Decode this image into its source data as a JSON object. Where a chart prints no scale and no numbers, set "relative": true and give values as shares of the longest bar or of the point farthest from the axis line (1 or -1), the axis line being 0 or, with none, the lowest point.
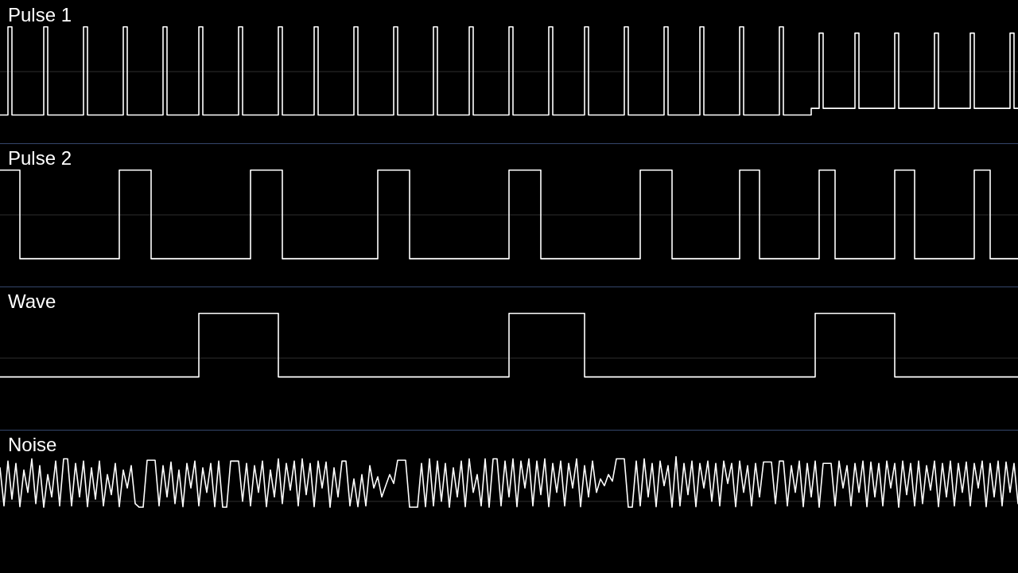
{
  "chart_data": [
    {
      "type": "step",
      "title": "Pulse 1",
      "relative": true,
      "categories": [
        null,
        null,
        null,
        null,
        null,
        null,
        null,
        null,
        null,
        null,
        null,
        null,
        null,
        null,
        null,
        null,
        null,
        null,
        null,
        null,
        null,
        null,
        null,
        null,
        null,
        null,
        null,
        null,
        null,
        null,
        null,
        null,
        null,
        null,
        null,
        null,
        null,
        null,
        null,
        null,
        null,
        null,
        null,
        null,
        null,
        null,
        null,
        null,
        null,
        null,
        null,
        null,
        null,
        null,
        null,
        null,
        null,
        null,
        null,
        null,
        null,
        null,
        null,
        null,
        null,
        null,
        null,
        null,
        null,
        null,
        null,
        null,
        null,
        null,
        null,
        null,
        null,
        null,
        null,
        null,
        null,
        null,
        null,
        null,
        null,
        null,
        null,
        null,
        null,
        null,
        null,
        null,
        null,
        null,
        null,
        null,
        null,
        null,
        null,
        null,
        null,
        null,
        null,
        null,
        null,
        null,
        null,
        null,
        null,
        null,
        null,
        null,
        null,
        null,
        null,
        null,
        null,
        null,
        null,
        null,
        null,
        null,
        null,
        null,
        null,
        null,
        null,
        null,
        null,
        null,
        null,
        null,
        null,
        null,
        null,
        null,
        null,
        null,
        null,
        null,
        null,
        null,
        null,
        null,
        null,
        null,
        null,
        null,
        null,
        null,
        null,
        null,
        null,
        null,
        null,
        null,
        null,
        null,
        null,
        null,
        null,
        null,
        null,
        null,
        null,
        null,
        null,
        null,
        null,
        null,
        null,
        null,
        null,
        null,
        null,
        null,
        null,
        null,
        null,
        null,
        null,
        null,
        null,
        null,
        null,
        null,
        null,
        null,
        null,
        null,
        null,
        null,
        null,
        null,
        null,
        null,
        null,
        null,
        null,
        null,
        null,
        null,
        null,
        null,
        null,
        null,
        null,
        null,
        null,
        null,
        null,
        null,
        null,
        null,
        null,
        null,
        null,
        null,
        null,
        null,
        null,
        null,
        null,
        null,
        null,
        null,
        null,
        null,
        null,
        null,
        null,
        null,
        null,
        null,
        null,
        null,
        null,
        null,
        null,
        null,
        null,
        null,
        null,
        null,
        null,
        null,
        null,
        null,
        null,
        null,
        null,
        null,
        null,
        null,
        null,
        null,
        null
      ],
      "series": [
        {
          "color": "#ffffff",
          "values": [
            -0.97,
            -0.97,
            1,
            -0.97,
            -0.97,
            -0.97,
            -0.97,
            -0.97,
            -0.97,
            -0.97,
            -0.97,
            1,
            -0.97,
            -0.97,
            -0.97,
            -0.97,
            -0.97,
            -0.97,
            -0.97,
            -0.97,
            -0.97,
            1,
            -0.97,
            -0.97,
            -0.97,
            -0.97,
            -0.97,
            -0.97,
            -0.97,
            -0.97,
            -0.97,
            1,
            -0.97,
            -0.97,
            -0.97,
            -0.97,
            -0.97,
            -0.97,
            -0.97,
            -0.97,
            -0.97,
            1,
            -0.97,
            -0.97,
            -0.97,
            -0.97,
            -0.97,
            -0.97,
            -0.97,
            -0.97,
            1,
            -0.97,
            -0.97,
            -0.97,
            -0.97,
            -0.97,
            -0.97,
            -0.97,
            -0.97,
            -0.97,
            1,
            -0.97,
            -0.97,
            -0.97,
            -0.97,
            -0.97,
            -0.97,
            -0.97,
            -0.97,
            -0.97,
            1,
            -0.97,
            -0.97,
            -0.97,
            -0.97,
            -0.97,
            -0.97,
            -0.97,
            -0.97,
            1,
            -0.97,
            -0.97,
            -0.97,
            -0.97,
            -0.97,
            -0.97,
            -0.97,
            -0.97,
            -0.97,
            1,
            -0.97,
            -0.97,
            -0.97,
            -0.97,
            -0.97,
            -0.97,
            -0.97,
            -0.97,
            -0.97,
            1,
            -0.97,
            -0.97,
            -0.97,
            -0.97,
            -0.97,
            -0.97,
            -0.97,
            -0.97,
            -0.97,
            1,
            -0.97,
            -0.97,
            -0.97,
            -0.97,
            -0.97,
            -0.97,
            -0.97,
            -0.97,
            1,
            -0.97,
            -0.97,
            -0.97,
            -0.97,
            -0.97,
            -0.97,
            -0.97,
            -0.97,
            -0.97,
            1,
            -0.97,
            -0.97,
            -0.97,
            -0.97,
            -0.97,
            -0.97,
            -0.97,
            -0.97,
            -0.97,
            1,
            -0.97,
            -0.97,
            -0.97,
            -0.97,
            -0.97,
            -0.97,
            -0.97,
            -0.97,
            1,
            -0.97,
            -0.97,
            -0.97,
            -0.97,
            -0.97,
            -0.97,
            -0.97,
            -0.97,
            -0.97,
            1,
            -0.97,
            -0.97,
            -0.97,
            -0.97,
            -0.97,
            -0.97,
            -0.97,
            -0.97,
            -0.97,
            1,
            -0.97,
            -0.97,
            -0.97,
            -0.97,
            -0.97,
            -0.97,
            -0.97,
            -0.97,
            1,
            -0.97,
            -0.97,
            -0.97,
            -0.97,
            -0.97,
            -0.97,
            -0.97,
            -0.97,
            -0.97,
            1,
            -0.97,
            -0.97,
            -0.97,
            -0.97,
            -0.97,
            -0.97,
            -0.97,
            -0.97,
            -0.97,
            1,
            -0.97,
            -0.97,
            -0.97,
            -0.97,
            -0.97,
            -0.97,
            -0.97,
            -0.82,
            -0.82,
            0.86,
            -0.82,
            -0.82,
            -0.82,
            -0.82,
            -0.82,
            -0.82,
            -0.82,
            -0.82,
            0.86,
            -0.82,
            -0.82,
            -0.82,
            -0.82,
            -0.82,
            -0.82,
            -0.82,
            -0.82,
            -0.82,
            0.86,
            -0.82,
            -0.82,
            -0.82,
            -0.82,
            -0.82,
            -0.82,
            -0.82,
            -0.82,
            -0.82,
            0.86,
            -0.82,
            -0.82,
            -0.82,
            -0.82,
            -0.82,
            -0.82,
            -0.82,
            -0.82,
            0.86,
            -0.82,
            -0.82,
            -0.82,
            -0.82,
            -0.82,
            -0.82,
            -0.82,
            -0.82,
            -0.82,
            0.86,
            -0.82,
            -0.82
          ]
        }
      ]
    },
    {
      "type": "step",
      "title": "Pulse 2",
      "relative": true,
      "categories": [
        null,
        null,
        null,
        null,
        null,
        null,
        null,
        null,
        null,
        null,
        null,
        null,
        null,
        null,
        null,
        null,
        null,
        null,
        null,
        null,
        null,
        null,
        null,
        null,
        null,
        null,
        null,
        null,
        null,
        null,
        null,
        null,
        null,
        null,
        null,
        null,
        null,
        null,
        null,
        null,
        null,
        null,
        null,
        null,
        null,
        null,
        null,
        null,
        null,
        null,
        null,
        null,
        null,
        null,
        null,
        null,
        null,
        null,
        null,
        null,
        null,
        null,
        null,
        null,
        null,
        null,
        null,
        null,
        null,
        null,
        null,
        null,
        null,
        null,
        null,
        null,
        null,
        null,
        null,
        null,
        null,
        null,
        null,
        null,
        null,
        null,
        null,
        null,
        null,
        null,
        null,
        null,
        null,
        null,
        null,
        null,
        null,
        null,
        null,
        null,
        null,
        null,
        null,
        null,
        null,
        null,
        null,
        null,
        null,
        null,
        null,
        null,
        null,
        null,
        null,
        null,
        null,
        null,
        null,
        null,
        null,
        null,
        null,
        null,
        null,
        null,
        null,
        null,
        null,
        null,
        null,
        null,
        null,
        null,
        null,
        null,
        null,
        null,
        null,
        null,
        null,
        null,
        null,
        null,
        null,
        null,
        null,
        null,
        null,
        null,
        null,
        null,
        null,
        null,
        null,
        null,
        null,
        null,
        null,
        null,
        null,
        null,
        null,
        null,
        null,
        null,
        null,
        null,
        null,
        null,
        null,
        null,
        null,
        null,
        null,
        null,
        null,
        null,
        null,
        null,
        null,
        null,
        null,
        null,
        null,
        null,
        null,
        null,
        null,
        null,
        null,
        null,
        null,
        null,
        null,
        null,
        null,
        null,
        null,
        null,
        null,
        null,
        null,
        null,
        null,
        null,
        null,
        null,
        null,
        null,
        null,
        null,
        null,
        null,
        null,
        null,
        null,
        null,
        null,
        null,
        null,
        null,
        null,
        null,
        null,
        null,
        null,
        null,
        null,
        null,
        null,
        null,
        null,
        null,
        null,
        null,
        null,
        null,
        null,
        null,
        null,
        null,
        null,
        null,
        null,
        null,
        null,
        null,
        null,
        null,
        null,
        null,
        null,
        null,
        null,
        null,
        null
      ],
      "series": [
        {
          "color": "#ffffff",
          "values": [
            1,
            1,
            1,
            1,
            1,
            -0.98,
            -0.98,
            -0.98,
            -0.98,
            -0.98,
            -0.98,
            -0.98,
            -0.98,
            -0.98,
            -0.98,
            -0.98,
            -0.98,
            -0.98,
            -0.98,
            -0.98,
            -0.98,
            -0.98,
            -0.98,
            -0.98,
            -0.98,
            -0.98,
            -0.98,
            -0.98,
            -0.98,
            -0.98,
            1,
            1,
            1,
            1,
            1,
            1,
            1,
            1,
            -0.98,
            -0.98,
            -0.98,
            -0.98,
            -0.98,
            -0.98,
            -0.98,
            -0.98,
            -0.98,
            -0.98,
            -0.98,
            -0.98,
            -0.98,
            -0.98,
            -0.98,
            -0.98,
            -0.98,
            -0.98,
            -0.98,
            -0.98,
            -0.98,
            -0.98,
            -0.98,
            -0.98,
            -0.98,
            1,
            1,
            1,
            1,
            1,
            1,
            1,
            1,
            -0.98,
            -0.98,
            -0.98,
            -0.98,
            -0.98,
            -0.98,
            -0.98,
            -0.98,
            -0.98,
            -0.98,
            -0.98,
            -0.98,
            -0.98,
            -0.98,
            -0.98,
            -0.98,
            -0.98,
            -0.98,
            -0.98,
            -0.98,
            -0.98,
            -0.98,
            -0.98,
            -0.98,
            1,
            1,
            1,
            1,
            1,
            1,
            1,
            1,
            -0.98,
            -0.98,
            -0.98,
            -0.98,
            -0.98,
            -0.98,
            -0.98,
            -0.98,
            -0.98,
            -0.98,
            -0.98,
            -0.98,
            -0.98,
            -0.98,
            -0.98,
            -0.98,
            -0.98,
            -0.98,
            -0.98,
            -0.98,
            -0.98,
            -0.98,
            -0.98,
            -0.98,
            -0.98,
            1,
            1,
            1,
            1,
            1,
            1,
            1,
            1,
            -0.98,
            -0.98,
            -0.98,
            -0.98,
            -0.98,
            -0.98,
            -0.98,
            -0.98,
            -0.98,
            -0.98,
            -0.98,
            -0.98,
            -0.98,
            -0.98,
            -0.98,
            -0.98,
            -0.98,
            -0.98,
            -0.98,
            -0.98,
            -0.98,
            -0.98,
            -0.98,
            -0.98,
            -0.98,
            1,
            1,
            1,
            1,
            1,
            1,
            1,
            1,
            -0.98,
            -0.98,
            -0.98,
            -0.98,
            -0.98,
            -0.98,
            -0.98,
            -0.98,
            -0.98,
            -0.98,
            -0.98,
            -0.98,
            -0.98,
            -0.98,
            -0.98,
            -0.98,
            -0.98,
            1,
            1,
            1,
            1,
            1,
            -0.98,
            -0.98,
            -0.98,
            -0.98,
            -0.98,
            -0.98,
            -0.98,
            -0.98,
            -0.98,
            -0.98,
            -0.98,
            -0.98,
            -0.98,
            -0.98,
            -0.98,
            1,
            1,
            1,
            1,
            -0.98,
            -0.98,
            -0.98,
            -0.98,
            -0.98,
            -0.98,
            -0.98,
            -0.98,
            -0.98,
            -0.98,
            -0.98,
            -0.98,
            -0.98,
            -0.98,
            -0.98,
            1,
            1,
            1,
            1,
            1,
            -0.98,
            -0.98,
            -0.98,
            -0.98,
            -0.98,
            -0.98,
            -0.98,
            -0.98,
            -0.98,
            -0.98,
            -0.98,
            -0.98,
            -0.98,
            -0.98,
            -0.98,
            1,
            1,
            1,
            1,
            -0.98,
            -0.98,
            -0.98,
            -0.98,
            -0.98,
            -0.98,
            -0.98,
            -0.98
          ]
        }
      ]
    },
    {
      "type": "step",
      "title": "Wave",
      "relative": true,
      "categories": [
        null,
        null,
        null,
        null,
        null,
        null,
        null,
        null,
        null,
        null,
        null,
        null,
        null,
        null,
        null,
        null,
        null,
        null,
        null,
        null,
        null,
        null,
        null,
        null,
        null,
        null,
        null,
        null,
        null,
        null,
        null,
        null,
        null,
        null,
        null,
        null,
        null,
        null,
        null,
        null,
        null,
        null,
        null,
        null,
        null,
        null,
        null,
        null,
        null,
        null,
        null,
        null,
        null,
        null,
        null,
        null,
        null,
        null,
        null,
        null,
        null,
        null,
        null,
        null,
        null,
        null,
        null,
        null,
        null,
        null,
        null,
        null,
        null,
        null,
        null,
        null,
        null,
        null,
        null,
        null,
        null,
        null,
        null,
        null,
        null,
        null,
        null,
        null,
        null,
        null,
        null,
        null,
        null,
        null,
        null,
        null,
        null,
        null,
        null,
        null,
        null,
        null,
        null,
        null,
        null,
        null,
        null,
        null,
        null,
        null,
        null,
        null,
        null,
        null,
        null,
        null,
        null,
        null,
        null,
        null,
        null,
        null,
        null,
        null,
        null,
        null,
        null,
        null,
        null,
        null,
        null,
        null,
        null,
        null,
        null,
        null,
        null,
        null,
        null,
        null,
        null,
        null,
        null,
        null,
        null,
        null,
        null,
        null,
        null,
        null,
        null,
        null,
        null,
        null,
        null,
        null,
        null,
        null,
        null,
        null,
        null,
        null,
        null,
        null,
        null,
        null,
        null,
        null,
        null,
        null,
        null,
        null,
        null,
        null,
        null,
        null,
        null,
        null,
        null,
        null,
        null,
        null,
        null,
        null,
        null,
        null,
        null,
        null,
        null,
        null,
        null,
        null,
        null,
        null,
        null,
        null,
        null,
        null,
        null,
        null,
        null,
        null,
        null,
        null,
        null,
        null,
        null,
        null,
        null,
        null,
        null,
        null,
        null,
        null,
        null,
        null,
        null,
        null,
        null,
        null,
        null,
        null,
        null,
        null,
        null,
        null,
        null,
        null,
        null,
        null,
        null,
        null,
        null,
        null,
        null,
        null,
        null,
        null,
        null,
        null,
        null,
        null,
        null,
        null,
        null,
        null,
        null,
        null,
        null,
        null,
        null,
        null,
        null,
        null,
        null,
        null,
        null
      ],
      "series": [
        {
          "color": "#ffffff",
          "values": [
            -0.42,
            -0.42,
            -0.42,
            -0.42,
            -0.42,
            -0.42,
            -0.42,
            -0.42,
            -0.42,
            -0.42,
            -0.42,
            -0.42,
            -0.42,
            -0.42,
            -0.42,
            -0.42,
            -0.42,
            -0.42,
            -0.42,
            -0.42,
            -0.42,
            -0.42,
            -0.42,
            -0.42,
            -0.42,
            -0.42,
            -0.42,
            -0.42,
            -0.42,
            -0.42,
            -0.42,
            -0.42,
            -0.42,
            -0.42,
            -0.42,
            -0.42,
            -0.42,
            -0.42,
            -0.42,
            -0.42,
            -0.42,
            -0.42,
            -0.42,
            -0.42,
            -0.42,
            -0.42,
            -0.42,
            -0.42,
            -0.42,
            -0.42,
            1,
            1,
            1,
            1,
            1,
            1,
            1,
            1,
            1,
            1,
            1,
            1,
            1,
            1,
            1,
            1,
            1,
            1,
            1,
            1,
            -0.42,
            -0.42,
            -0.42,
            -0.42,
            -0.42,
            -0.42,
            -0.42,
            -0.42,
            -0.42,
            -0.42,
            -0.42,
            -0.42,
            -0.42,
            -0.42,
            -0.42,
            -0.42,
            -0.42,
            -0.42,
            -0.42,
            -0.42,
            -0.42,
            -0.42,
            -0.42,
            -0.42,
            -0.42,
            -0.42,
            -0.42,
            -0.42,
            -0.42,
            -0.42,
            -0.42,
            -0.42,
            -0.42,
            -0.42,
            -0.42,
            -0.42,
            -0.42,
            -0.42,
            -0.42,
            -0.42,
            -0.42,
            -0.42,
            -0.42,
            -0.42,
            -0.42,
            -0.42,
            -0.42,
            -0.42,
            -0.42,
            -0.42,
            -0.42,
            -0.42,
            -0.42,
            -0.42,
            -0.42,
            -0.42,
            -0.42,
            -0.42,
            1,
            1,
            1,
            1,
            1,
            1,
            1,
            1,
            1,
            1,
            1,
            1,
            1,
            1,
            1,
            1,
            1,
            1,
            1,
            -0.42,
            -0.42,
            -0.42,
            -0.42,
            -0.42,
            -0.42,
            -0.42,
            -0.42,
            -0.42,
            -0.42,
            -0.42,
            -0.42,
            -0.42,
            -0.42,
            -0.42,
            -0.42,
            -0.42,
            -0.42,
            -0.42,
            -0.42,
            -0.42,
            -0.42,
            -0.42,
            -0.42,
            -0.42,
            -0.42,
            -0.42,
            -0.42,
            -0.42,
            -0.42,
            -0.42,
            -0.42,
            -0.42,
            -0.42,
            -0.42,
            -0.42,
            -0.42,
            -0.42,
            -0.42,
            -0.42,
            -0.42,
            -0.42,
            -0.42,
            -0.42,
            -0.42,
            -0.42,
            -0.42,
            -0.42,
            -0.42,
            -0.42,
            -0.42,
            -0.42,
            -0.42,
            -0.42,
            -0.42,
            -0.42,
            -0.42,
            -0.42,
            1,
            1,
            1,
            1,
            1,
            1,
            1,
            1,
            1,
            1,
            1,
            1,
            1,
            1,
            1,
            1,
            1,
            1,
            1,
            1,
            -0.42,
            -0.42,
            -0.42,
            -0.42,
            -0.42,
            -0.42,
            -0.42,
            -0.42,
            -0.42,
            -0.42,
            -0.42,
            -0.42,
            -0.42,
            -0.42,
            -0.42,
            -0.42,
            -0.42,
            -0.42,
            -0.42,
            -0.42,
            -0.42,
            -0.42,
            -0.42,
            -0.42,
            -0.42,
            -0.42,
            -0.42,
            -0.42,
            -0.42,
            -0.42,
            -0.42,
            -0.42
          ]
        }
      ]
    },
    {
      "type": "line",
      "title": "Noise",
      "relative": true,
      "categories": [
        null,
        null,
        null,
        null,
        null,
        null,
        null,
        null,
        null,
        null,
        null,
        null,
        null,
        null,
        null,
        null,
        null,
        null,
        null,
        null,
        null,
        null,
        null,
        null,
        null,
        null,
        null,
        null,
        null,
        null,
        null,
        null,
        null,
        null,
        null,
        null,
        null,
        null,
        null,
        null,
        null,
        null,
        null,
        null,
        null,
        null,
        null,
        null,
        null,
        null,
        null,
        null,
        null,
        null,
        null,
        null,
        null,
        null,
        null,
        null,
        null,
        null,
        null,
        null,
        null,
        null,
        null,
        null,
        null,
        null,
        null,
        null,
        null,
        null,
        null,
        null,
        null,
        null,
        null,
        null,
        null,
        null,
        null,
        null,
        null,
        null,
        null,
        null,
        null,
        null,
        null,
        null,
        null,
        null,
        null,
        null,
        null,
        null,
        null,
        null,
        null,
        null,
        null,
        null,
        null,
        null,
        null,
        null,
        null,
        null,
        null,
        null,
        null,
        null,
        null,
        null,
        null,
        null,
        null,
        null,
        null,
        null,
        null,
        null,
        null,
        null,
        null,
        null,
        null,
        null,
        null,
        null,
        null,
        null,
        null,
        null,
        null,
        null,
        null,
        null,
        null,
        null,
        null,
        null,
        null,
        null,
        null,
        null,
        null,
        null,
        null,
        null,
        null,
        null,
        null,
        null,
        null,
        null,
        null,
        null,
        null,
        null,
        null,
        null,
        null,
        null,
        null,
        null,
        null,
        null,
        null,
        null,
        null,
        null,
        null,
        null,
        null,
        null,
        null,
        null,
        null,
        null,
        null,
        null,
        null,
        null,
        null,
        null,
        null,
        null,
        null,
        null,
        null,
        null,
        null,
        null,
        null,
        null,
        null,
        null,
        null,
        null,
        null,
        null,
        null,
        null,
        null,
        null,
        null,
        null,
        null,
        null,
        null,
        null,
        null,
        null,
        null,
        null,
        null,
        null,
        null,
        null,
        null,
        null,
        null,
        null,
        null,
        null,
        null,
        null,
        null,
        null,
        null,
        null,
        null,
        null,
        null,
        null,
        null,
        null,
        null,
        null,
        null,
        null,
        null,
        null,
        null,
        null,
        null,
        null,
        null,
        null,
        null,
        null,
        null,
        null,
        null
      ],
      "series": [
        {
          "color": "#ffffff",
          "values": [
            0.75,
            -0.1,
            0.9,
            0.05,
            0.85,
            -0.12,
            0.7,
            0.2,
            0.95,
            -0.05,
            0.8,
            -0.13,
            0.6,
            0.1,
            0.9,
            -0.1,
            0.95,
            0.95,
            -0.1,
            0.85,
            0.1,
            0.9,
            -0.12,
            0.75,
            0.05,
            0.9,
            -0.1,
            0.6,
            0.15,
            0.85,
            -0.12,
            0.7,
            0.3,
            0.8,
            -0.05,
            -0.13,
            -0.13,
            0.92,
            0.92,
            0.92,
            -0.1,
            0.8,
            0.1,
            0.88,
            -0.05,
            0.7,
            -0.12,
            0.85,
            0.3,
            0.9,
            -0.1,
            0.75,
            0.2,
            0.85,
            -0.12,
            0.9,
            -0.13,
            -0.13,
            0.9,
            0.9,
            0.9,
            0.0,
            0.85,
            -0.1,
            0.8,
            0.2,
            0.9,
            -0.12,
            0.7,
            0.1,
            0.95,
            -0.05,
            0.85,
            0.25,
            0.9,
            -0.1,
            0.95,
            0.15,
            0.85,
            -0.12,
            0.9,
            0.3,
            0.88,
            -0.13,
            0.75,
            0.1,
            0.9,
            0.9,
            -0.1,
            0.5,
            -0.12,
            0.6,
            -0.1,
            0.8,
            0.3,
            0.55,
            0.1,
            0.35,
            0.6,
            0.4,
            0.92,
            0.92,
            0.92,
            -0.13,
            -0.13,
            -0.13,
            0.85,
            -0.12,
            0.95,
            -0.1,
            0.9,
            0.0,
            0.85,
            -0.13,
            0.75,
            0.1,
            0.9,
            -0.12,
            0.95,
            0.2,
            0.6,
            -0.1,
            0.95,
            -0.13,
            0.95,
            0.95,
            -0.1,
            0.9,
            0.1,
            0.95,
            -0.12,
            0.9,
            0.3,
            0.95,
            -0.1,
            0.9,
            0.15,
            0.95,
            -0.12,
            0.85,
            0.2,
            0.9,
            -0.1,
            0.85,
            0.3,
            0.95,
            -0.12,
            0.8,
            0.1,
            0.9,
            0.2,
            0.5,
            0.35,
            0.6,
            0.45,
            0.95,
            0.95,
            0.95,
            -0.13,
            -0.13,
            0.9,
            -0.1,
            0.95,
            0.1,
            0.85,
            -0.12,
            0.9,
            0.35,
            0.8,
            -0.13,
            1.0,
            -0.1,
            0.85,
            0.15,
            0.9,
            -0.12,
            0.85,
            0.3,
            0.9,
            0.0,
            0.85,
            -0.1,
            0.9,
            0.4,
            0.85,
            -0.12,
            0.9,
            0.2,
            0.8,
            -0.1,
            0.85,
            0.1,
            0.88,
            0.88,
            0.88,
            -0.05,
            0.9,
            0.9,
            -0.1,
            0.8,
            0.2,
            0.9,
            -0.12,
            0.85,
            0.1,
            0.9,
            -0.13,
            0.85,
            0.85,
            0.85,
            -0.1,
            0.9,
            0.3,
            0.8,
            -0.1,
            0.85,
            0.2,
            0.9,
            -0.12,
            0.88,
            0.1,
            0.85,
            -0.1,
            0.9,
            0.3,
            0.85,
            -0.13,
            0.9,
            0.15,
            0.85,
            -0.1,
            0.9,
            -0.05,
            0.8,
            0.25,
            0.9,
            -0.12,
            0.85,
            0.1,
            0.9,
            -0.1,
            0.85,
            0.2,
            0.88,
            -0.1,
            0.85,
            0.3,
            0.9,
            -0.12,
            0.85,
            0.1,
            0.9,
            -0.1,
            0.88,
            0.2,
            0.85,
            -0.05
          ]
        }
      ]
    }
  ]
}
